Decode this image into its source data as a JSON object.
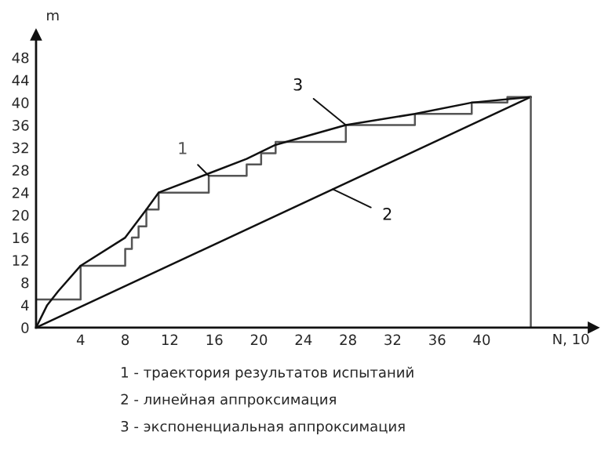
{
  "chart_data": {
    "type": "line",
    "xlabel": "N, 10",
    "ylabel": "m",
    "series": [
      {
        "name": "1",
        "type": "step",
        "color": "#555555",
        "x": [
          0,
          4,
          8,
          8.6,
          9.2,
          9.9,
          11.0,
          15.5,
          18.9,
          20.2,
          21.5,
          27.8,
          34.0,
          39.1,
          42.3,
          44.4
        ],
        "values": [
          5,
          11,
          14,
          16,
          18,
          21,
          24,
          27,
          29,
          31,
          33,
          36,
          38,
          40,
          41,
          41
        ]
      },
      {
        "name": "2",
        "color": "#111111",
        "x": [
          0,
          44.4
        ],
        "values": [
          0,
          41
        ]
      },
      {
        "name": "3",
        "color": "#111111",
        "x": [
          0,
          1,
          2,
          4,
          8,
          9.9,
          11,
          15.5,
          18.9,
          21.5,
          27.8,
          34,
          39.1,
          44.4
        ],
        "values": [
          0,
          4,
          6.5,
          11,
          16,
          21,
          24,
          27.4,
          30,
          32.5,
          36,
          38,
          40,
          41
        ]
      },
      {
        "color": "#555555",
        "x": [
          44.4,
          44.4
        ],
        "values": [
          0,
          41
        ]
      }
    ],
    "xlim": [
      0,
      50
    ],
    "ylim": [
      0,
      52
    ],
    "xticks": [
      4,
      8,
      12,
      16,
      20,
      24,
      28,
      32,
      36,
      40
    ],
    "yticks": [
      0,
      4,
      8,
      12,
      16,
      20,
      24,
      28,
      32,
      36,
      40,
      44,
      48
    ],
    "grid": false,
    "legend": false,
    "marker": "none",
    "line_style": "solid",
    "annotations": [
      "1 - траектория результатов испытаний",
      "2 - линейная аппроксимация",
      "3 - экспоненциальная аппроксимация"
    ]
  }
}
